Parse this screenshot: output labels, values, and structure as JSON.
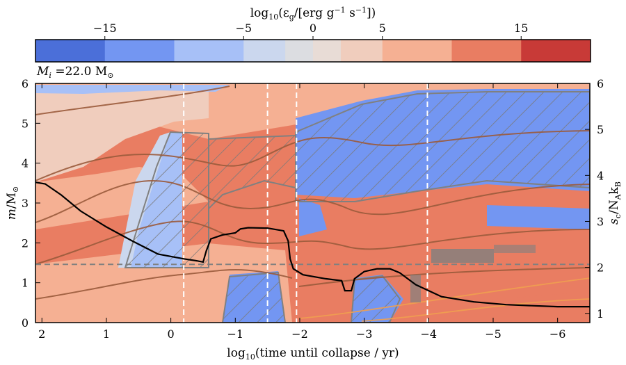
{
  "chart_data": {
    "type": "heatmap",
    "colorbar": {
      "label_main": "log",
      "label_sub": "10",
      "label_rest": "(ε",
      "label_eps_sub": "g",
      "label_units": "/[erg g",
      "label_exp1": "−1",
      "label_s": " s",
      "label_exp2": "−1",
      "label_end": "])",
      "range": [
        -20,
        20
      ],
      "ticks": [
        "−15",
        "−5",
        "0",
        "5",
        "15"
      ],
      "tick_values": [
        -15,
        -5,
        0,
        5,
        15
      ],
      "bins": [
        {
          "from": -20,
          "to": -15,
          "color": "#4b6fd9"
        },
        {
          "from": -15,
          "to": -10,
          "color": "#7396f2"
        },
        {
          "from": -10,
          "to": -5,
          "color": "#a7c0f7"
        },
        {
          "from": -5,
          "to": -2,
          "color": "#cbd7ee"
        },
        {
          "from": -2,
          "to": 0,
          "color": "#dcdde1"
        },
        {
          "from": 0,
          "to": 2,
          "color": "#e8dcd6"
        },
        {
          "from": 2,
          "to": 5,
          "color": "#f0cdbd"
        },
        {
          "from": 5,
          "to": 10,
          "color": "#f5b093"
        },
        {
          "from": 10,
          "to": 15,
          "color": "#e97d62"
        },
        {
          "from": 15,
          "to": 20,
          "color": "#c83a37"
        }
      ]
    },
    "model_label": {
      "symbol": "M",
      "sub": "i",
      "text": " =22.0 M",
      "sun": "⊙"
    },
    "xlabel": {
      "pre": "log",
      "sub": "10",
      "post": "(time until collapse / yr)"
    },
    "ylabel_left": {
      "m": "m",
      "slash": "/M",
      "sun": "⊙"
    },
    "ylabel_right": {
      "s": "s",
      "sub": "c",
      "post": "/N",
      "a": "A",
      "k": "k",
      "b": "B"
    },
    "x_ticks": [
      "2",
      "1",
      "0",
      "−1",
      "−2",
      "−3",
      "−4",
      "−5",
      "−6"
    ],
    "x_tick_values": [
      2,
      1,
      0,
      -1,
      -2,
      -3,
      -4,
      -5,
      -6
    ],
    "xlim": [
      2.1,
      -6.5
    ],
    "y_left_ticks": [
      "0",
      "1",
      "2",
      "3",
      "4",
      "5",
      "6"
    ],
    "y_left_values": [
      0,
      1,
      2,
      3,
      4,
      5,
      6
    ],
    "ylim_left": [
      0,
      6
    ],
    "y_right_ticks": [
      "1",
      "2",
      "3",
      "4",
      "5",
      "6"
    ],
    "y_right_values": [
      1,
      2,
      3,
      4,
      5,
      6
    ],
    "ylim_right": [
      0.8,
      6
    ],
    "vlines_dashed_white": [
      -0.2,
      -1.5,
      -1.95,
      -3.98
    ],
    "hline_dashed_gray": 1.46,
    "central_entropy_line": [
      [
        2.1,
        3.52
      ],
      [
        1.95,
        3.48
      ],
      [
        1.7,
        3.2
      ],
      [
        1.4,
        2.8
      ],
      [
        1.0,
        2.4
      ],
      [
        0.6,
        2.05
      ],
      [
        0.2,
        1.72
      ],
      [
        -0.2,
        1.6
      ],
      [
        -0.4,
        1.55
      ],
      [
        -0.5,
        1.52
      ],
      [
        -0.55,
        1.8
      ],
      [
        -0.62,
        2.1
      ],
      [
        -0.8,
        2.2
      ],
      [
        -1.0,
        2.25
      ],
      [
        -1.08,
        2.35
      ],
      [
        -1.2,
        2.38
      ],
      [
        -1.5,
        2.37
      ],
      [
        -1.75,
        2.3
      ],
      [
        -1.82,
        2.05
      ],
      [
        -1.85,
        1.6
      ],
      [
        -1.9,
        1.35
      ],
      [
        -2.05,
        1.2
      ],
      [
        -2.4,
        1.1
      ],
      [
        -2.65,
        1.05
      ],
      [
        -2.7,
        0.8
      ],
      [
        -2.8,
        0.8
      ],
      [
        -2.85,
        1.1
      ],
      [
        -3.0,
        1.28
      ],
      [
        -3.2,
        1.35
      ],
      [
        -3.4,
        1.35
      ],
      [
        -3.55,
        1.25
      ],
      [
        -3.8,
        0.95
      ],
      [
        -4.2,
        0.65
      ],
      [
        -4.7,
        0.52
      ],
      [
        -5.2,
        0.45
      ],
      [
        -6.0,
        0.4
      ],
      [
        -6.5,
        0.4
      ]
    ]
  }
}
